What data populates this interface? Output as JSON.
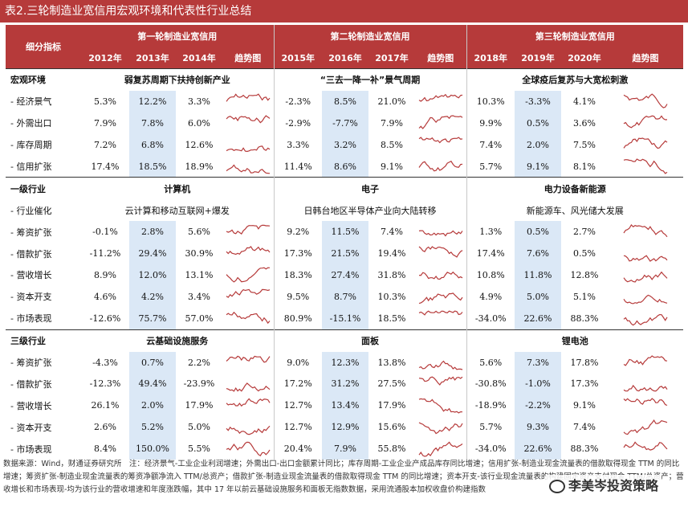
{
  "title": "表2.三轮制造业宽信用宏观环境和代表性行业总结",
  "header": {
    "corner": "细分指标",
    "periods": [
      "第一轮制造业宽信用",
      "第二轮制造业宽信用",
      "第三轮制造业宽信用"
    ],
    "years": [
      [
        "2012年",
        "2013年",
        "2014年"
      ],
      [
        "2015年",
        "2016年",
        "2017年"
      ],
      [
        "2018年",
        "2019年",
        "2020年"
      ]
    ],
    "trend": "趋势图"
  },
  "sections": [
    {
      "label": "宏观环境",
      "themes": [
        "弱复苏周期下扶持创新产业",
        "“三去一降一补”景气周期",
        "全球疫后复苏与大宽松刺激"
      ],
      "rows": [
        {
          "label": "- 经济景气",
          "values": [
            [
              "5.3%",
              "12.2%",
              "3.3%"
            ],
            [
              "-2.3%",
              "8.5%",
              "21.0%"
            ],
            [
              "10.3%",
              "-3.3%",
              "4.1%"
            ]
          ]
        },
        {
          "label": "- 外需出口",
          "values": [
            [
              "7.9%",
              "7.8%",
              "6.0%"
            ],
            [
              "-2.9%",
              "-7.7%",
              "7.9%"
            ],
            [
              "9.9%",
              "0.5%",
              "3.6%"
            ]
          ]
        },
        {
          "label": "- 库存周期",
          "values": [
            [
              "7.2%",
              "6.8%",
              "12.6%"
            ],
            [
              "3.3%",
              "3.2%",
              "8.5%"
            ],
            [
              "7.4%",
              "2.0%",
              "7.5%"
            ]
          ]
        },
        {
          "label": "- 信用扩张",
          "values": [
            [
              "17.4%",
              "18.5%",
              "18.9%"
            ],
            [
              "11.4%",
              "8.6%",
              "9.1%"
            ],
            [
              "5.7%",
              "9.1%",
              "8.1%"
            ]
          ]
        }
      ]
    },
    {
      "label": "一级行业",
      "themes": [
        "计算机",
        "电子",
        "电力设备新能源"
      ],
      "catalyst_label": "- 行业催化",
      "catalysts": [
        "云计算和移动互联网+爆发",
        "日韩台地区半导体产业向大陆转移",
        "新能源车、风光储大发展"
      ],
      "rows": [
        {
          "label": "- 筹资扩张",
          "values": [
            [
              "-0.1%",
              "2.8%",
              "5.6%"
            ],
            [
              "9.2%",
              "11.5%",
              "7.4%"
            ],
            [
              "1.3%",
              "0.5%",
              "2.7%"
            ]
          ]
        },
        {
          "label": "- 借款扩张",
          "values": [
            [
              "-11.2%",
              "29.4%",
              "30.9%"
            ],
            [
              "17.3%",
              "21.5%",
              "19.4%"
            ],
            [
              "17.4%",
              "7.6%",
              "0.5%"
            ]
          ]
        },
        {
          "label": "- 营收增长",
          "values": [
            [
              "8.9%",
              "12.0%",
              "13.1%"
            ],
            [
              "18.3%",
              "27.4%",
              "31.8%"
            ],
            [
              "10.8%",
              "11.8%",
              "12.8%"
            ]
          ]
        },
        {
          "label": "- 资本开支",
          "values": [
            [
              "4.6%",
              "4.2%",
              "3.4%"
            ],
            [
              "9.5%",
              "8.7%",
              "10.3%"
            ],
            [
              "4.9%",
              "5.0%",
              "5.1%"
            ]
          ]
        },
        {
          "label": "- 市场表现",
          "values": [
            [
              "-12.6%",
              "75.7%",
              "57.0%"
            ],
            [
              "80.9%",
              "-15.1%",
              "18.5%"
            ],
            [
              "-34.0%",
              "22.6%",
              "88.3%"
            ]
          ]
        }
      ]
    },
    {
      "label": "三级行业",
      "themes": [
        "云基础设施服务",
        "面板",
        "锂电池"
      ],
      "rows": [
        {
          "label": "- 筹资扩张",
          "values": [
            [
              "-4.3%",
              "0.7%",
              "2.2%"
            ],
            [
              "9.0%",
              "12.3%",
              "13.8%"
            ],
            [
              "5.6%",
              "7.3%",
              "17.8%"
            ]
          ]
        },
        {
          "label": "- 借款扩张",
          "values": [
            [
              "-12.3%",
              "49.4%",
              "-23.9%"
            ],
            [
              "17.2%",
              "31.2%",
              "27.5%"
            ],
            [
              "-30.8%",
              "-1.0%",
              "17.3%"
            ]
          ]
        },
        {
          "label": "- 营收增长",
          "values": [
            [
              "26.1%",
              "2.0%",
              "17.9%"
            ],
            [
              "12.7%",
              "13.4%",
              "17.9%"
            ],
            [
              "-18.9%",
              "-2.2%",
              "9.1%"
            ]
          ]
        },
        {
          "label": "- 资本开支",
          "values": [
            [
              "2.6%",
              "5.2%",
              "5.0%"
            ],
            [
              "12.7%",
              "12.9%",
              "15.6%"
            ],
            [
              "5.7%",
              "9.3%",
              "7.4%"
            ]
          ]
        },
        {
          "label": "- 市场表现",
          "values": [
            [
              "8.4%",
              "150.0%",
              "5.5%"
            ],
            [
              "20.4%",
              "7.9%",
              "55.8%"
            ],
            [
              "-34.0%",
              "22.6%",
              "88.3%"
            ]
          ]
        }
      ]
    }
  ],
  "footnote": "数据来源：Wind，财通证券研究所　注：经济景气-工业企业利润增速；外需出口-出口金额累计同比；库存周期-工业企业产成品库存同比增速；信用扩张-制造业现金流量表的借款取得现金 TTM 的同比增速；筹资扩张-制造业现金流量表的筹资净额净流入 TTM/总资产；借款扩张-制造业现金流量表的借款取得现金 TTM 的同比增速；资本开支-该行业现金流量表的构建固定资产支付现金 TTM/总资产；营收增长和市场表现-均为该行业的营收增速和年度涨跌幅，其中 17 年以前云基础设施服务和面板无指数数据，采用流通股本加权收盘价构建指数",
  "watermark": "李美岑投资策略",
  "colors": {
    "header": "#b63a3a",
    "highlight": "#dbe8f6",
    "sparkline": "#b63a3a"
  }
}
